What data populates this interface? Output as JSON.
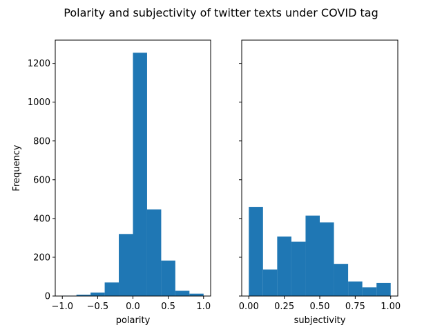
{
  "figure": {
    "title": "Polarity and subjectivity of twitter texts under COVID tag",
    "bar_color": "#1f77b4"
  },
  "chart_data": [
    {
      "type": "bar",
      "xlabel": "polarity",
      "ylabel": "Frequency",
      "xlim": [
        -1.1,
        1.1
      ],
      "ylim": [
        0,
        1320
      ],
      "xticks": [
        -1.0,
        -0.5,
        0.0,
        0.5,
        1.0
      ],
      "xtick_labels": [
        "−1.0",
        "−0.5",
        "0.0",
        "0.5",
        "1.0"
      ],
      "yticks": [
        0,
        200,
        400,
        600,
        800,
        1000,
        1200
      ],
      "ytick_labels": [
        "0",
        "200",
        "400",
        "600",
        "800",
        "1000",
        "1200"
      ],
      "bin_edges": [
        -1.0,
        -0.8,
        -0.6,
        -0.4,
        -0.2,
        0.0,
        0.2,
        0.4,
        0.6,
        0.8,
        1.0
      ],
      "values": [
        2,
        7,
        18,
        70,
        320,
        1255,
        447,
        183,
        27,
        12
      ],
      "grid": false,
      "legend": "none"
    },
    {
      "type": "bar",
      "xlabel": "subjectivity",
      "ylabel": "",
      "xlim": [
        -0.05,
        1.05
      ],
      "ylim": [
        0,
        1320
      ],
      "xticks": [
        0.0,
        0.25,
        0.5,
        0.75,
        1.0
      ],
      "xtick_labels": [
        "0.00",
        "0.25",
        "0.50",
        "0.75",
        "1.00"
      ],
      "yticks": [
        0,
        200,
        400,
        600,
        800,
        1000,
        1200
      ],
      "ytick_labels": [],
      "bin_edges": [
        0.0,
        0.1,
        0.2,
        0.3,
        0.4,
        0.5,
        0.6,
        0.7,
        0.8,
        0.9,
        1.0
      ],
      "values": [
        460,
        137,
        307,
        280,
        415,
        380,
        165,
        75,
        45,
        68
      ],
      "grid": false,
      "legend": "none",
      "sharey": true
    }
  ]
}
